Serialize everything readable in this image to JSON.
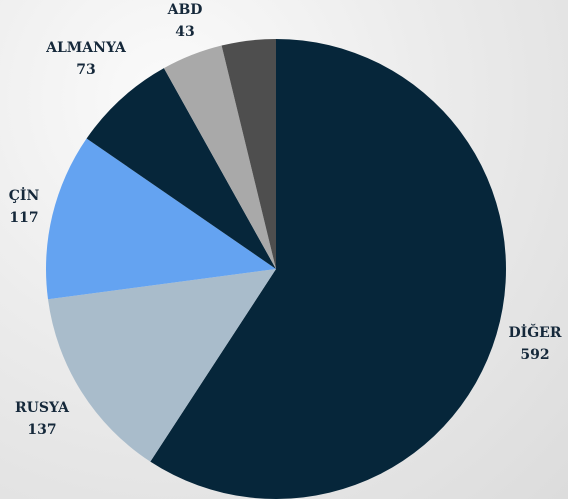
{
  "chart_data": {
    "type": "pie",
    "categories": [
      "DİĞER",
      "RUSYA",
      "ÇİN",
      "ALMANYA",
      "ABD",
      null
    ],
    "values": [
      592,
      137,
      117,
      73,
      43,
      38
    ],
    "colors": [
      "#06263a",
      "#a9bccb",
      "#64a3f1",
      "#06263a",
      "#a9a9a9",
      "#4e4e4e"
    ]
  }
}
